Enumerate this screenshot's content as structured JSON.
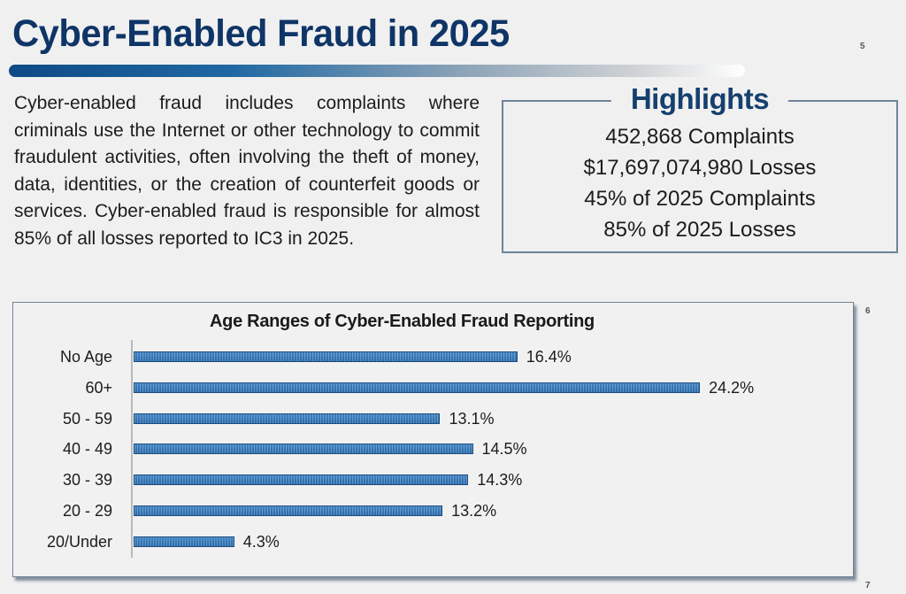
{
  "page": {
    "title": "Cyber-Enabled Fraud in 2025",
    "page_numbers": [
      "5",
      "6",
      "7"
    ],
    "description": "Cyber-enabled fraud includes complaints where criminals use the Internet or other technology to commit fraudulent activities, often involving the theft of money, data, identities, or the creation of counterfeit goods or services. Cyber-enabled fraud is responsible for almost 85% of all losses reported to IC3 in 2025."
  },
  "highlights": {
    "title": "Highlights",
    "items": [
      "452,868 Complaints",
      "$17,697,074,980 Losses",
      "45% of 2025 Complaints",
      "85% of 2025 Losses"
    ]
  },
  "colors": {
    "title": "#0f3567",
    "bar": "#2f72b3",
    "border": "#6f8499"
  },
  "chart_data": {
    "type": "bar",
    "orientation": "horizontal",
    "title": "Age Ranges of Cyber-Enabled Fraud Reporting",
    "categories": [
      "No Age",
      "60+",
      "50 - 59",
      "40 - 49",
      "30 - 39",
      "20 - 29",
      "20/Under"
    ],
    "values": [
      16.4,
      24.2,
      13.1,
      14.5,
      14.3,
      13.2,
      4.3
    ],
    "value_labels": [
      "16.4%",
      "24.2%",
      "13.1%",
      "14.5%",
      "14.3%",
      "13.2%",
      "4.3%"
    ],
    "xlabel": "",
    "ylabel": "",
    "unit": "%",
    "grid": false,
    "legend": "none",
    "xlim": [
      0,
      30
    ]
  }
}
